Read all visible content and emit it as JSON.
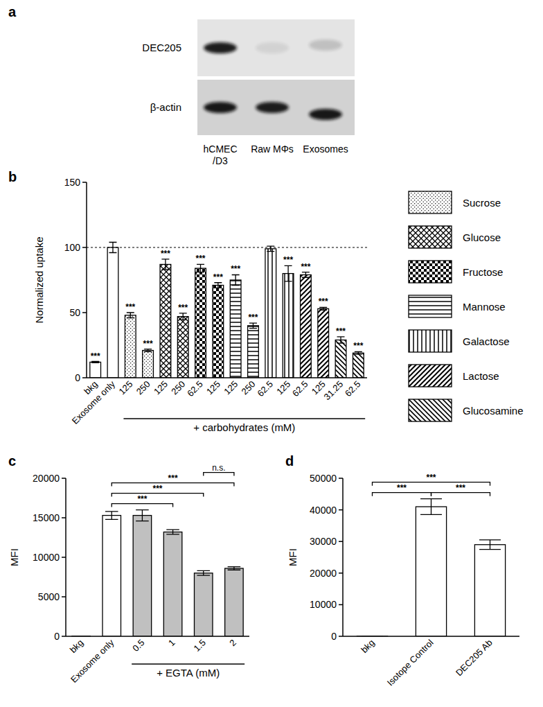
{
  "chart_data": [
    {
      "type": "blot",
      "panel": "a",
      "rows": [
        "DEC205",
        "β-actin"
      ],
      "lanes": [
        "hCMEC/D3",
        "Raw MΦs",
        "Exosomes"
      ]
    },
    {
      "type": "bar",
      "panel": "b",
      "ylabel": "Normalized uptake",
      "categories": [
        "bkg",
        "Exosome only",
        "125",
        "250",
        "125",
        "250",
        "62.5",
        "125",
        "125",
        "250",
        "62.5",
        "125",
        "62.5",
        "125",
        "31.25",
        "62.5"
      ],
      "xlabel": {
        "text": "+ carbohydrates (mM)",
        "from": 2,
        "to": 15
      },
      "ylim": [
        0,
        150
      ],
      "yticks": [
        0,
        50,
        100,
        150
      ],
      "hline": 100,
      "legend": "right",
      "series": [
        {
          "marker": "none",
          "color": "#ffffff",
          "values": [
            12,
            100,
            null,
            null,
            null,
            null,
            null,
            null,
            null,
            null,
            null,
            null,
            null,
            null,
            null,
            null
          ],
          "errors": [
            0.5,
            4,
            null,
            null,
            null,
            null,
            null,
            null,
            null,
            null,
            null,
            null,
            null,
            null,
            null,
            null
          ],
          "annotations": [
            "***",
            null,
            null,
            null,
            null,
            null,
            null,
            null,
            null,
            null,
            null,
            null,
            null,
            null,
            null,
            null
          ]
        },
        {
          "name": "Sucrose",
          "marker": "dots",
          "color": "#000000",
          "values": [
            null,
            null,
            48,
            21,
            null,
            null,
            null,
            null,
            null,
            null,
            null,
            null,
            null,
            null,
            null,
            null
          ],
          "errors": [
            null,
            null,
            2,
            1,
            null,
            null,
            null,
            null,
            null,
            null,
            null,
            null,
            null,
            null,
            null,
            null
          ],
          "annotations": [
            null,
            null,
            "***",
            "***",
            null,
            null,
            null,
            null,
            null,
            null,
            null,
            null,
            null,
            null,
            null,
            null
          ]
        },
        {
          "name": "Glucose",
          "marker": "cross",
          "color": "#000000",
          "values": [
            null,
            null,
            null,
            null,
            87,
            47,
            null,
            null,
            null,
            null,
            null,
            null,
            null,
            null,
            null,
            null
          ],
          "errors": [
            null,
            null,
            null,
            null,
            4,
            2.5,
            null,
            null,
            null,
            null,
            null,
            null,
            null,
            null,
            null,
            null
          ],
          "annotations": [
            null,
            null,
            null,
            null,
            "***",
            "***",
            null,
            null,
            null,
            null,
            null,
            null,
            null,
            null,
            null,
            null
          ]
        },
        {
          "name": "Fructose",
          "marker": "checker",
          "color": "#000000",
          "values": [
            null,
            null,
            null,
            null,
            null,
            null,
            84,
            71,
            null,
            null,
            null,
            null,
            null,
            null,
            null,
            null
          ],
          "errors": [
            null,
            null,
            null,
            null,
            null,
            null,
            3,
            2,
            null,
            null,
            null,
            null,
            null,
            null,
            null,
            null
          ],
          "annotations": [
            null,
            null,
            null,
            null,
            null,
            null,
            "***",
            "***",
            null,
            null,
            null,
            null,
            null,
            null,
            null,
            null
          ]
        },
        {
          "name": "Mannose",
          "marker": "horizontal",
          "color": "#000000",
          "values": [
            null,
            null,
            null,
            null,
            null,
            null,
            null,
            null,
            75,
            40,
            null,
            null,
            null,
            null,
            null,
            null
          ],
          "errors": [
            null,
            null,
            null,
            null,
            null,
            null,
            null,
            null,
            4,
            2,
            null,
            null,
            null,
            null,
            null,
            null
          ],
          "annotations": [
            null,
            null,
            null,
            null,
            null,
            null,
            null,
            null,
            "***",
            "***",
            null,
            null,
            null,
            null,
            null,
            null
          ]
        },
        {
          "name": "Galactose",
          "marker": "vertical",
          "color": "#000000",
          "values": [
            null,
            null,
            null,
            null,
            null,
            null,
            null,
            null,
            null,
            null,
            99,
            80,
            null,
            null,
            null,
            null
          ],
          "errors": [
            null,
            null,
            null,
            null,
            null,
            null,
            null,
            null,
            null,
            null,
            2,
            6,
            null,
            null,
            null,
            null
          ],
          "annotations": [
            null,
            null,
            null,
            null,
            null,
            null,
            null,
            null,
            null,
            null,
            null,
            "***",
            null,
            null,
            null,
            null
          ]
        },
        {
          "name": "Lactose",
          "marker": "diagonal",
          "color": "#000000",
          "values": [
            null,
            null,
            null,
            null,
            null,
            null,
            null,
            null,
            null,
            null,
            null,
            null,
            79,
            53,
            null,
            null
          ],
          "errors": [
            null,
            null,
            null,
            null,
            null,
            null,
            null,
            null,
            null,
            null,
            null,
            null,
            2,
            1,
            null,
            null
          ],
          "annotations": [
            null,
            null,
            null,
            null,
            null,
            null,
            null,
            null,
            null,
            null,
            null,
            null,
            "***",
            "***",
            null,
            null
          ]
        },
        {
          "name": "Glucosamine",
          "marker": "backdiagonal",
          "color": "#000000",
          "values": [
            null,
            null,
            null,
            null,
            null,
            null,
            null,
            null,
            null,
            null,
            null,
            null,
            null,
            null,
            29,
            19
          ],
          "errors": [
            null,
            null,
            null,
            null,
            null,
            null,
            null,
            null,
            null,
            null,
            null,
            null,
            null,
            null,
            2.5,
            1
          ],
          "annotations": [
            null,
            null,
            null,
            null,
            null,
            null,
            null,
            null,
            null,
            null,
            null,
            null,
            null,
            null,
            "***",
            "***"
          ]
        }
      ]
    },
    {
      "type": "bar",
      "panel": "c",
      "ylabel": "MFI",
      "categories": [
        "bkg",
        "Exosome only",
        "0.5",
        "1",
        "1.5",
        "2"
      ],
      "values": [
        30,
        15300,
        15300,
        13200,
        8000,
        8600
      ],
      "errors": [
        0,
        500,
        700,
        300,
        300,
        200
      ],
      "colors": [
        "#ffffff",
        "#ffffff",
        "#c0c0c0",
        "#c0c0c0",
        "#c0c0c0",
        "#c0c0c0"
      ],
      "xlabel": {
        "text": "+ EGTA (mM)",
        "from": 2,
        "to": 5
      },
      "ylim": [
        0,
        20000
      ],
      "yticks": [
        0,
        5000,
        10000,
        15000,
        20000
      ],
      "comparisons": [
        {
          "from": 1,
          "to": 3,
          "label": "***"
        },
        {
          "from": 1,
          "to": 4,
          "label": "***"
        },
        {
          "from": 1,
          "to": 5,
          "label": "***"
        },
        {
          "from": 4,
          "to": 5,
          "label": "n.s."
        }
      ]
    },
    {
      "type": "bar",
      "panel": "d",
      "ylabel": "MFI",
      "categories": [
        "bkg",
        "Isotope Control",
        "DEC205 Ab"
      ],
      "values": [
        50,
        41000,
        29000
      ],
      "errors": [
        0,
        2500,
        1500
      ],
      "color": "#ffffff",
      "ylim": [
        0,
        50000
      ],
      "yticks": [
        0,
        10000,
        20000,
        30000,
        40000,
        50000
      ],
      "comparisons": [
        {
          "from": 0,
          "to": 1,
          "label": "***"
        },
        {
          "from": 1,
          "to": 2,
          "label": "***"
        },
        {
          "from": 0,
          "to": 2,
          "label": "***"
        }
      ]
    }
  ]
}
